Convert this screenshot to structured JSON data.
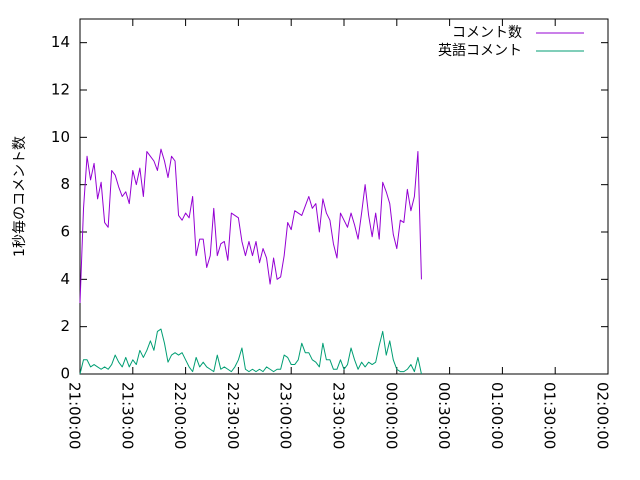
{
  "chart_data": {
    "type": "line",
    "title": "",
    "xlabel": "",
    "ylabel": "1秒毎のコメント数",
    "ylim": [
      0,
      15
    ],
    "yticks": [
      0,
      2,
      4,
      6,
      8,
      10,
      12,
      14
    ],
    "xticks": [
      "21:00:00",
      "21:30:00",
      "22:00:00",
      "22:30:00",
      "23:00:00",
      "23:30:00",
      "00:00:00",
      "00:30:00",
      "01:00:00",
      "01:30:00",
      "02:00:00"
    ],
    "x_start_time": "21:00:00",
    "x_step_minutes": 2,
    "legend_position": "top-right",
    "grid": false,
    "series": [
      {
        "name": "コメント数",
        "color": "#9400d3",
        "values": [
          3.0,
          7.0,
          9.2,
          8.2,
          8.9,
          7.4,
          8.1,
          6.4,
          6.2,
          8.6,
          8.4,
          7.9,
          7.5,
          7.7,
          7.2,
          8.6,
          8.0,
          8.7,
          7.5,
          9.4,
          9.2,
          9.0,
          8.6,
          9.5,
          9.0,
          8.3,
          9.2,
          9.0,
          6.7,
          6.5,
          6.8,
          6.6,
          7.5,
          5.0,
          5.7,
          5.7,
          4.5,
          5.0,
          7.0,
          5.0,
          5.5,
          5.6,
          4.8,
          6.8,
          6.7,
          6.6,
          5.6,
          5.0,
          5.6,
          5.0,
          5.6,
          4.7,
          5.3,
          4.9,
          3.8,
          4.9,
          4.0,
          4.1,
          5.0,
          6.4,
          6.1,
          6.9,
          6.8,
          6.7,
          7.1,
          7.5,
          7.0,
          7.2,
          6.0,
          7.4,
          6.8,
          6.5,
          5.5,
          4.9,
          6.8,
          6.5,
          6.2,
          6.8,
          6.3,
          5.7,
          6.8,
          8.0,
          6.7,
          5.8,
          6.8,
          5.7,
          8.1,
          7.7,
          7.2,
          5.9,
          5.3,
          6.5,
          6.4,
          7.8,
          6.9,
          7.5,
          9.4,
          4.0
        ]
      },
      {
        "name": "英語コメント",
        "color": "#009e73",
        "values": [
          0.0,
          0.6,
          0.6,
          0.3,
          0.4,
          0.3,
          0.2,
          0.3,
          0.2,
          0.4,
          0.8,
          0.5,
          0.3,
          0.7,
          0.3,
          0.6,
          0.4,
          1.0,
          0.7,
          1.0,
          1.4,
          1.0,
          1.8,
          1.9,
          1.3,
          0.5,
          0.8,
          0.9,
          0.8,
          0.9,
          0.6,
          0.3,
          0.1,
          0.7,
          0.3,
          0.5,
          0.3,
          0.2,
          0.1,
          0.8,
          0.2,
          0.3,
          0.2,
          0.1,
          0.3,
          0.6,
          1.1,
          0.2,
          0.1,
          0.2,
          0.1,
          0.2,
          0.1,
          0.3,
          0.2,
          0.1,
          0.2,
          0.2,
          0.8,
          0.7,
          0.4,
          0.4,
          0.6,
          1.3,
          0.9,
          0.9,
          0.6,
          0.5,
          0.3,
          1.3,
          0.6,
          0.6,
          0.2,
          0.2,
          0.6,
          0.2,
          0.4,
          1.1,
          0.6,
          0.2,
          0.5,
          0.3,
          0.5,
          0.4,
          0.5,
          1.2,
          1.8,
          0.8,
          1.4,
          0.6,
          0.2,
          0.1,
          0.1,
          0.2,
          0.4,
          0.1,
          0.7,
          0.0
        ]
      }
    ]
  }
}
